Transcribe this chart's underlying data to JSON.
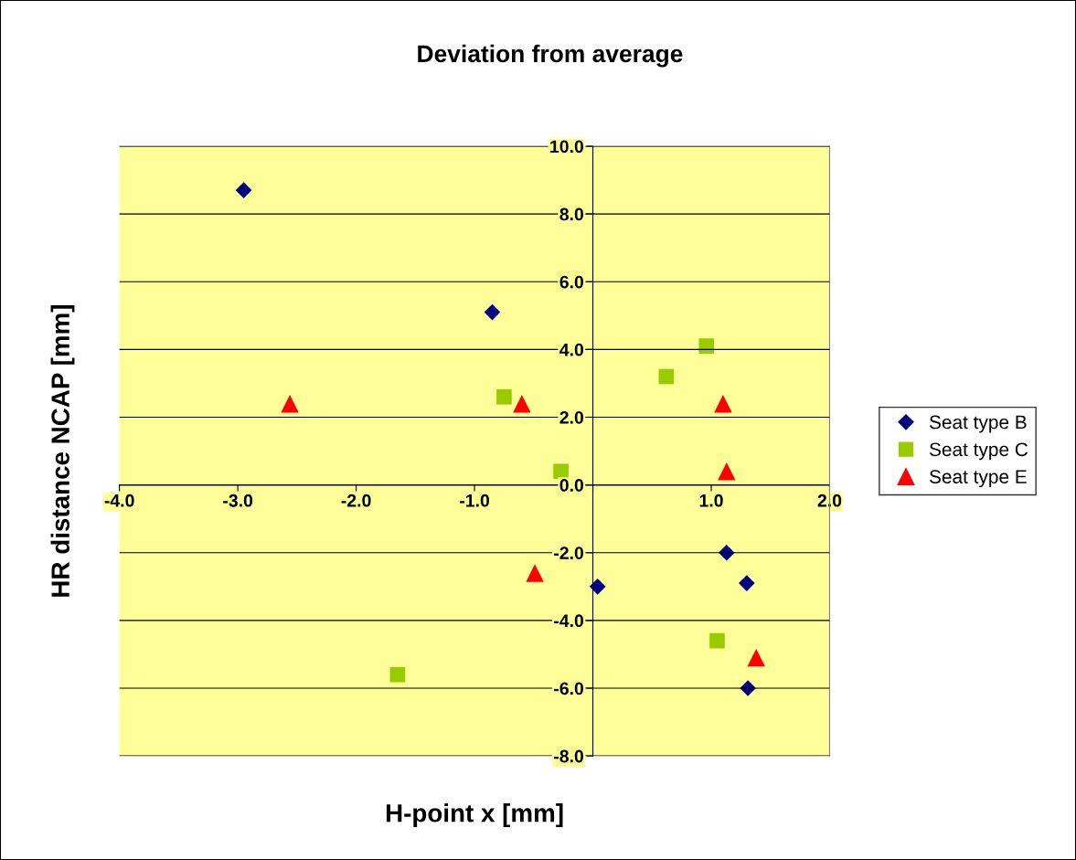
{
  "chart_data": {
    "type": "scatter",
    "title": "Deviation from average",
    "xlabel": "H-point x [mm]",
    "ylabel": "HR distance NCAP [mm]",
    "series": [
      {
        "name": "Seat type B",
        "color": "#000080",
        "marker": "diamond",
        "x": [
          -2.95,
          -0.85,
          0.04,
          1.13,
          1.3,
          1.31
        ],
        "values": [
          8.7,
          5.1,
          -3.0,
          -2.0,
          -2.9,
          -6.0
        ]
      },
      {
        "name": "Seat type C",
        "color": "#99cc00",
        "marker": "square",
        "x": [
          0.96,
          0.62,
          -0.75,
          -0.27,
          1.05,
          -1.65
        ],
        "values": [
          4.1,
          3.2,
          2.6,
          0.4,
          -4.6,
          -5.6
        ]
      },
      {
        "name": "Seat type E",
        "color": "#ff0000",
        "marker": "triangle",
        "x": [
          -2.56,
          -0.6,
          1.1,
          1.13,
          -0.49,
          1.38
        ],
        "values": [
          2.4,
          2.4,
          2.4,
          0.4,
          -2.6,
          -5.1
        ]
      }
    ],
    "xlim": [
      -4,
      2
    ],
    "ylim": [
      -8,
      10
    ],
    "xticks": [
      {
        "value": -4,
        "label": "-4.0"
      },
      {
        "value": -3,
        "label": "-3.0"
      },
      {
        "value": -2,
        "label": "-2.0"
      },
      {
        "value": -1,
        "label": "-1.0"
      },
      {
        "value": 0,
        "label": null
      },
      {
        "value": 1,
        "label": "1.0"
      },
      {
        "value": 2,
        "label": "2.0"
      }
    ],
    "yticks": [
      {
        "value": -8,
        "label": "-8.0"
      },
      {
        "value": -6,
        "label": "-6.0"
      },
      {
        "value": -4,
        "label": "-4.0"
      },
      {
        "value": -2,
        "label": "-2.0"
      },
      {
        "value": 0,
        "label": "0.0"
      },
      {
        "value": 2,
        "label": "2.0"
      },
      {
        "value": 4,
        "label": "4.0"
      },
      {
        "value": 6,
        "label": "6.0"
      },
      {
        "value": 8,
        "label": "8.0"
      },
      {
        "value": 10,
        "label": "10.0"
      }
    ],
    "grid": "y",
    "legend": "right"
  }
}
